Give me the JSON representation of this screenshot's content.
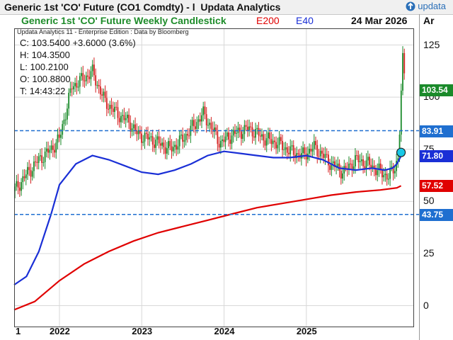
{
  "window": {
    "title": "Generic 1st 'CO' Future (CO1 Comdty) - l",
    "app": "Updata Analytics",
    "logo_text": "updata"
  },
  "header": {
    "chart_title": "Generic 1st 'CO' Future Weekly Candlestick",
    "legend_e200": "E200",
    "legend_e40": "E40",
    "date": "24 Mar 2026",
    "right_label": "Ar"
  },
  "source_note": "Updata Analytics 11 - Enterprise Edition : Data by Bloomberg",
  "ohlc": {
    "close": "C: 103.5400  +3.6000 (3.6%)",
    "high": "H: 104.3500",
    "low": "L: 100.2100",
    "open": "O: 100.8800",
    "time": "T: 14:43:22"
  },
  "price_tags": [
    {
      "label": "103.54",
      "value": 103.54,
      "color": "#1a8a2a"
    },
    {
      "label": "83.91",
      "value": 83.91,
      "color": "#1f6fd0"
    },
    {
      "label": "71.80",
      "value": 71.8,
      "color": "#1a2fd6"
    },
    {
      "label": "57.52",
      "value": 57.52,
      "color": "#e00000"
    },
    {
      "label": "43.75",
      "value": 43.75,
      "color": "#1f6fd0"
    }
  ],
  "colors": {
    "up": "#1a8a2a",
    "down": "#d42020",
    "e200": "#e00000",
    "e40": "#1a2fd6",
    "hline": "#1f6fd0",
    "marker": "#19c8e6"
  },
  "chart_data": {
    "type": "candlestick",
    "title": "Generic 1st 'CO' Future Weekly Candlestick",
    "frequency": "weekly",
    "y_ticks": [
      0,
      25,
      50,
      75,
      100,
      125
    ],
    "ylim": [
      -10,
      133
    ],
    "x_ticks": [
      "1",
      "2022",
      "2023",
      "2024",
      "2025"
    ],
    "x_tick_positions": [
      2021.45,
      2022.0,
      2023.0,
      2024.0,
      2025.0
    ],
    "xlim": [
      2021.45,
      2026.3
    ],
    "horizontal_lines": [
      83.91,
      43.75
    ],
    "marker": {
      "x": 2026.15,
      "y": 73.5
    },
    "price_anchors": {
      "x": [
        2021.45,
        2021.6,
        2021.75,
        2021.9,
        2022.0,
        2022.15,
        2022.4,
        2022.55,
        2022.7,
        2022.85,
        2022.95,
        2023.1,
        2023.35,
        2023.5,
        2023.75,
        2023.95,
        2024.1,
        2024.3,
        2024.5,
        2024.65,
        2024.8,
        2024.95,
        2025.1,
        2025.3,
        2025.45,
        2025.6,
        2025.75,
        2025.9,
        2026.0,
        2026.07,
        2026.12,
        2026.17,
        2026.22
      ],
      "y": [
        55,
        63,
        70,
        75,
        80,
        105,
        112,
        98,
        92,
        88,
        82,
        80,
        75,
        80,
        92,
        78,
        82,
        85,
        80,
        78,
        74,
        72,
        76,
        68,
        64,
        70,
        68,
        64,
        62,
        66,
        72,
        118,
        103.5
      ]
    },
    "series": [
      {
        "name": "E200",
        "x": [
          2021.45,
          2021.7,
          2022.0,
          2022.3,
          2022.6,
          2022.9,
          2023.2,
          2023.5,
          2023.8,
          2024.1,
          2024.4,
          2024.7,
          2025.0,
          2025.3,
          2025.6,
          2025.9,
          2026.1,
          2026.15
        ],
        "y": [
          -2,
          2,
          12,
          20,
          26,
          31,
          35,
          38,
          41,
          44,
          47,
          49,
          51,
          53,
          54.5,
          55.5,
          56.5,
          57.5
        ]
      },
      {
        "name": "E40",
        "x": [
          2021.45,
          2021.6,
          2021.75,
          2021.9,
          2022.0,
          2022.2,
          2022.4,
          2022.6,
          2022.8,
          2023.0,
          2023.2,
          2023.4,
          2023.6,
          2023.8,
          2024.0,
          2024.2,
          2024.4,
          2024.6,
          2024.8,
          2025.0,
          2025.2,
          2025.4,
          2025.6,
          2025.8,
          2025.95,
          2026.05,
          2026.1,
          2026.15
        ],
        "y": [
          10,
          14,
          26,
          44,
          58,
          68,
          72,
          70,
          67,
          64,
          63,
          65,
          68,
          72,
          74,
          73,
          72,
          71,
          71,
          72,
          70,
          66,
          65,
          66,
          65,
          66,
          68,
          71.8
        ]
      }
    ]
  }
}
